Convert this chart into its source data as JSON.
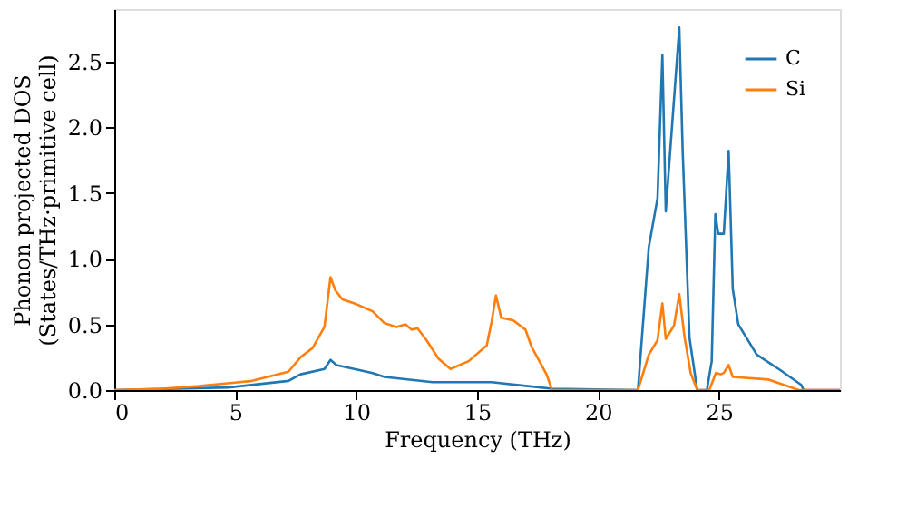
{
  "chart_data": {
    "type": "line",
    "xlabel": "Frequency (THz)",
    "ylabel": "Phonon projected DOS\n(States/THz·primitive cell)",
    "xlim": [
      0,
      30
    ],
    "ylim": [
      0,
      2.9
    ],
    "xticks": [
      0,
      5,
      10,
      15,
      20,
      25
    ],
    "yticks": [
      {
        "value": 0,
        "label": "0.0"
      },
      {
        "value": 0.5,
        "label": "0.5"
      },
      {
        "value": 1,
        "label": "1.0"
      },
      {
        "value": 1.5,
        "label": "1.5"
      },
      {
        "value": 2,
        "label": "2.0"
      },
      {
        "value": 2.5,
        "label": "2.5"
      }
    ],
    "grid": false,
    "legend": "top right",
    "line_style": "solid",
    "marker": "none",
    "series": [
      {
        "name": "C",
        "color": "#1f77b4",
        "x": [
          0,
          4.72,
          7.2,
          7.7,
          8.69,
          8.94,
          9.19,
          10.18,
          10.68,
          11.17,
          13.16,
          15.1,
          15.6,
          17.1,
          18.1,
          21.65,
          22.1,
          22.46,
          22.66,
          22.8,
          23.36,
          23.5,
          23.78,
          24.1,
          24.5,
          24.7,
          24.85,
          24.97,
          25.2,
          25.4,
          25.57,
          25.8,
          26.56,
          27.55,
          28.4,
          28.5,
          30
        ],
        "values": [
          0,
          0.02,
          0.07,
          0.12,
          0.16,
          0.23,
          0.19,
          0.15,
          0.13,
          0.1,
          0.06,
          0.06,
          0.06,
          0.03,
          0.01,
          0,
          1.09,
          1.46,
          2.55,
          1.36,
          2.76,
          1.82,
          0.4,
          0,
          0,
          0.22,
          1.34,
          1.19,
          1.19,
          1.82,
          0.77,
          0.5,
          0.27,
          0.15,
          0.04,
          0,
          0
        ]
      },
      {
        "name": "Si",
        "color": "#ff7f0e",
        "x": [
          0,
          2,
          3.48,
          5.7,
          7.2,
          7.7,
          8.2,
          8.69,
          8.94,
          9.14,
          9.43,
          9.93,
          10.43,
          10.68,
          11.17,
          11.67,
          12.04,
          12.29,
          12.54,
          12.91,
          13.4,
          13.9,
          14.65,
          15.4,
          15.6,
          15.78,
          16.0,
          16.5,
          17.0,
          17.25,
          17.87,
          18.1,
          21.65,
          22.1,
          22.46,
          22.66,
          22.8,
          23.14,
          23.36,
          23.58,
          23.83,
          24.1,
          24.6,
          24.87,
          25.07,
          25.2,
          25.4,
          25.57,
          27.06,
          28.3,
          30
        ],
        "values": [
          0,
          0.01,
          0.03,
          0.07,
          0.14,
          0.25,
          0.32,
          0.48,
          0.86,
          0.76,
          0.69,
          0.66,
          0.62,
          0.6,
          0.51,
          0.48,
          0.5,
          0.46,
          0.47,
          0.38,
          0.24,
          0.16,
          0.22,
          0.34,
          0.52,
          0.72,
          0.55,
          0.53,
          0.46,
          0.33,
          0.12,
          0,
          0,
          0.27,
          0.38,
          0.66,
          0.39,
          0.49,
          0.73,
          0.4,
          0.13,
          0,
          0,
          0.13,
          0.12,
          0.13,
          0.19,
          0.1,
          0.08,
          0,
          0
        ]
      }
    ]
  }
}
